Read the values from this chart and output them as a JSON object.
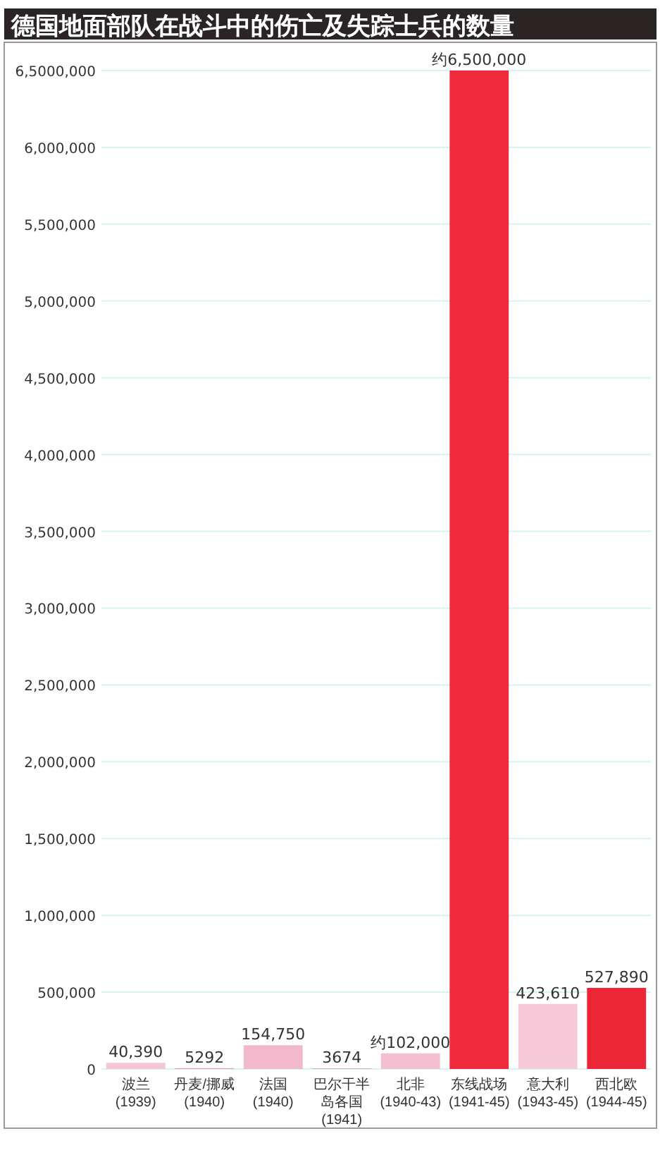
{
  "chart_data": {
    "type": "bar",
    "title": "德国地面部队在战斗中的伤亡及失踪士兵的数量",
    "categories": [
      "波兰(1939)",
      "丹麦/挪威(1940)",
      "法国(1940)",
      "巴尔干半岛各国(1941)",
      "北非(1940-43)",
      "东线战场(1941-45)",
      "意大利(1943-45)",
      "西北欧(1944-45)"
    ],
    "values": [
      40390,
      5292,
      154750,
      3674,
      102000,
      6500000,
      423610,
      527890
    ],
    "value_labels": [
      "40,390",
      "5292",
      "154,750",
      "3674",
      "约102,000",
      "约6,500,000",
      "423,610",
      "527,890"
    ],
    "colors": [
      "#f4c6d6",
      "#e89aae",
      "#f2b8cb",
      "#e89aae",
      "#f2c0cf",
      "#ee2a3c",
      "#f6cad8",
      "#ec2636"
    ],
    "ylim": [
      0,
      6500000
    ],
    "yticks": [
      0,
      {
        "value": 500000,
        "label": "500,000"
      },
      {
        "value": 1000000,
        "label": "1,000,000"
      },
      {
        "value": 1500000,
        "label": "1,500,000"
      },
      {
        "value": 2000000,
        "label": "2,000,000"
      },
      {
        "value": 2500000,
        "label": "2,500,000"
      },
      {
        "value": 3000000,
        "label": "3,000,000"
      },
      {
        "value": 3500000,
        "label": "3,500,000"
      },
      {
        "value": 4000000,
        "label": "4,000,000"
      },
      {
        "value": 4500000,
        "label": "4,500,000"
      },
      {
        "value": 5000000,
        "label": "5,000,000"
      },
      {
        "value": 5500000,
        "label": "5,500,000"
      },
      {
        "value": 6000000,
        "label": "6,000,000"
      },
      {
        "value": 6500000,
        "label": "6,5000,000"
      }
    ],
    "grid": "y"
  }
}
